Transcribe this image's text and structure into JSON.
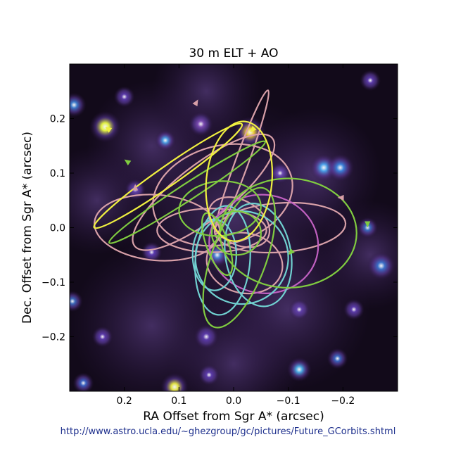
{
  "chart_data": {
    "type": "scatter",
    "title": "30 m ELT + AO",
    "xlabel": "RA Offset from Sgr A* (arcsec)",
    "ylabel": "Dec. Offset from Sgr A* (arcsec)",
    "xlim": [
      0.3,
      -0.3
    ],
    "ylim": [
      -0.3,
      0.3
    ],
    "x_ticks": [
      0.2,
      0.1,
      0.0,
      -0.1,
      -0.2
    ],
    "y_ticks": [
      -0.2,
      -0.1,
      0.0,
      0.1,
      0.2
    ],
    "x_tick_labels": [
      "0.2",
      "0.1",
      "0.0",
      "−0.1",
      "−0.2"
    ],
    "y_tick_labels": [
      "−0.2",
      "−0.1",
      "0.0",
      "0.1",
      "0.2"
    ],
    "background": "#120a1a",
    "orbit_colors": {
      "pink": "#d8a0a8",
      "green": "#80cc40",
      "yellow": "#f0f040",
      "cyan": "#70d0d0",
      "magenta": "#c060c0"
    },
    "stars": [
      {
        "x": 0.235,
        "y": 0.185,
        "r": 0.018,
        "color": "#e0f040"
      },
      {
        "x": 0.125,
        "y": 0.16,
        "r": 0.012,
        "color": "#4a9ce0"
      },
      {
        "x": -0.03,
        "y": 0.175,
        "r": 0.018,
        "color": "#e8c830"
      },
      {
        "x": 0.06,
        "y": 0.19,
        "r": 0.014,
        "color": "#7a4ab0"
      },
      {
        "x": -0.165,
        "y": 0.11,
        "r": 0.016,
        "color": "#4aa0e8"
      },
      {
        "x": -0.195,
        "y": 0.11,
        "r": 0.016,
        "color": "#3a80d8"
      },
      {
        "x": 0.292,
        "y": 0.225,
        "r": 0.014,
        "color": "#3a78c8"
      },
      {
        "x": -0.245,
        "y": 0.0,
        "r": 0.012,
        "color": "#3a70c0"
      },
      {
        "x": -0.27,
        "y": -0.07,
        "r": 0.016,
        "color": "#3a70c8"
      },
      {
        "x": 0.15,
        "y": -0.045,
        "r": 0.012,
        "color": "#5a3ab0"
      },
      {
        "x": 0.03,
        "y": -0.05,
        "r": 0.014,
        "color": "#4a80d0"
      },
      {
        "x": 0.295,
        "y": -0.135,
        "r": 0.012,
        "color": "#3a68b8"
      },
      {
        "x": -0.12,
        "y": -0.26,
        "r": 0.014,
        "color": "#4aa8e0"
      },
      {
        "x": -0.19,
        "y": -0.24,
        "r": 0.012,
        "color": "#3a68c0"
      },
      {
        "x": 0.108,
        "y": -0.292,
        "r": 0.016,
        "color": "#e0e040"
      },
      {
        "x": 0.275,
        "y": -0.285,
        "r": 0.012,
        "color": "#3a60c0"
      },
      {
        "x": -0.085,
        "y": 0.1,
        "r": 0.012,
        "color": "#6a4ab0"
      },
      {
        "x": 0.18,
        "y": 0.07,
        "r": 0.012,
        "color": "#6040a8"
      },
      {
        "x": -0.12,
        "y": -0.15,
        "r": 0.012,
        "color": "#6040a8"
      },
      {
        "x": 0.05,
        "y": -0.2,
        "r": 0.014,
        "color": "#5a3aa8"
      },
      {
        "x": -0.22,
        "y": -0.15,
        "r": 0.012,
        "color": "#5a3aa8"
      },
      {
        "x": 0.24,
        "y": -0.2,
        "r": 0.012,
        "color": "#5a3aa8"
      },
      {
        "x": 0.2,
        "y": 0.24,
        "r": 0.012,
        "color": "#5a3aa8"
      },
      {
        "x": -0.25,
        "y": 0.27,
        "r": 0.012,
        "color": "#5a3aa8"
      },
      {
        "x": 0.045,
        "y": -0.27,
        "r": 0.012,
        "color": "#5a3aa8"
      }
    ],
    "orbits": [
      {
        "cx": 0.14,
        "cy": 0.0,
        "rx": 0.115,
        "ry": 0.06,
        "rot": 5,
        "color": "#d8a0a8"
      },
      {
        "cx": 0.055,
        "cy": 0.065,
        "rx": 0.16,
        "ry": 0.05,
        "rot": -38,
        "color": "#d8a0a8"
      },
      {
        "cx": 0.02,
        "cy": 0.06,
        "rx": 0.13,
        "ry": 0.09,
        "rot": -15,
        "color": "#d8a0a8"
      },
      {
        "cx": -0.085,
        "cy": 0.0,
        "rx": 0.12,
        "ry": 0.045,
        "rot": -4,
        "color": "#d8a0a8"
      },
      {
        "cx": -0.02,
        "cy": -0.065,
        "rx": 0.07,
        "ry": 0.055,
        "rot": 12,
        "color": "#d8a0a8"
      },
      {
        "cx": 0.04,
        "cy": -0.005,
        "rx": 0.1,
        "ry": 0.04,
        "rot": 0,
        "color": "#d8a0a8"
      },
      {
        "cx": -0.015,
        "cy": 0.12,
        "rx": 0.14,
        "ry": 0.012,
        "rot": -70,
        "color": "#d8a0a8"
      },
      {
        "cx": -0.01,
        "cy": 0.01,
        "rx": 0.06,
        "ry": 0.04,
        "rot": 30,
        "color": "#d8a0a8"
      },
      {
        "cx": -0.055,
        "cy": -0.03,
        "rx": 0.1,
        "ry": 0.09,
        "rot": 10,
        "color": "#c060c0"
      },
      {
        "cx": 0.02,
        "cy": -0.06,
        "rx": 0.05,
        "ry": 0.1,
        "rot": 5,
        "color": "#70d0d0"
      },
      {
        "cx": -0.015,
        "cy": -0.055,
        "rx": 0.085,
        "ry": 0.085,
        "rot": 0,
        "color": "#70d0d0"
      },
      {
        "cx": -0.045,
        "cy": -0.05,
        "rx": 0.06,
        "ry": 0.095,
        "rot": -10,
        "color": "#70d0d0"
      },
      {
        "cx": 0.035,
        "cy": -0.05,
        "rx": 0.04,
        "ry": 0.065,
        "rot": 0,
        "color": "#70d0d0"
      },
      {
        "cx": 0.085,
        "cy": 0.065,
        "rx": 0.17,
        "ry": 0.015,
        "rot": -33,
        "color": "#80cc40"
      },
      {
        "cx": -0.1,
        "cy": -0.01,
        "rx": 0.125,
        "ry": 0.1,
        "rot": 0,
        "color": "#80cc40"
      },
      {
        "cx": -0.01,
        "cy": -0.055,
        "rx": 0.05,
        "ry": 0.135,
        "rot": 20,
        "color": "#80cc40"
      },
      {
        "cx": 0.025,
        "cy": 0.035,
        "rx": 0.075,
        "ry": 0.05,
        "rot": -5,
        "color": "#80cc40"
      },
      {
        "cx": -0.005,
        "cy": -0.01,
        "rx": 0.045,
        "ry": 0.04,
        "rot": 0,
        "color": "#80cc40"
      },
      {
        "cx": 0.03,
        "cy": -0.03,
        "rx": 0.02,
        "ry": 0.06,
        "rot": -20,
        "color": "#80cc40"
      },
      {
        "cx": -0.01,
        "cy": 0.085,
        "rx": 0.06,
        "ry": 0.11,
        "rot": 6,
        "color": "#f0f040"
      },
      {
        "cx": 0.12,
        "cy": 0.095,
        "rx": 0.165,
        "ry": 0.018,
        "rot": -35,
        "color": "#f0f040"
      }
    ],
    "arrows": [
      {
        "x": 0.235,
        "y": 0.185,
        "angle": 215,
        "color": "#f0f040"
      },
      {
        "x": -0.03,
        "y": 0.175,
        "angle": 135,
        "color": "#f0f040"
      },
      {
        "x": 0.2,
        "y": 0.125,
        "angle": 215,
        "color": "#80cc40"
      },
      {
        "x": -0.245,
        "y": 0.0,
        "angle": 90,
        "color": "#80cc40"
      },
      {
        "x": -0.1,
        "y": -0.05,
        "angle": 135,
        "color": "#80cc40"
      },
      {
        "x": 0.065,
        "y": 0.235,
        "angle": 300,
        "color": "#d8a0a8"
      },
      {
        "x": 0.18,
        "y": 0.08,
        "angle": 270,
        "color": "#d8a0a8"
      },
      {
        "x": -0.19,
        "y": 0.055,
        "angle": 180,
        "color": "#d8a0a8"
      }
    ]
  },
  "footer": {
    "source_url": "http://www.astro.ucla.edu/~ghezgroup/gc/pictures/Future_GCorbits.shtml"
  }
}
